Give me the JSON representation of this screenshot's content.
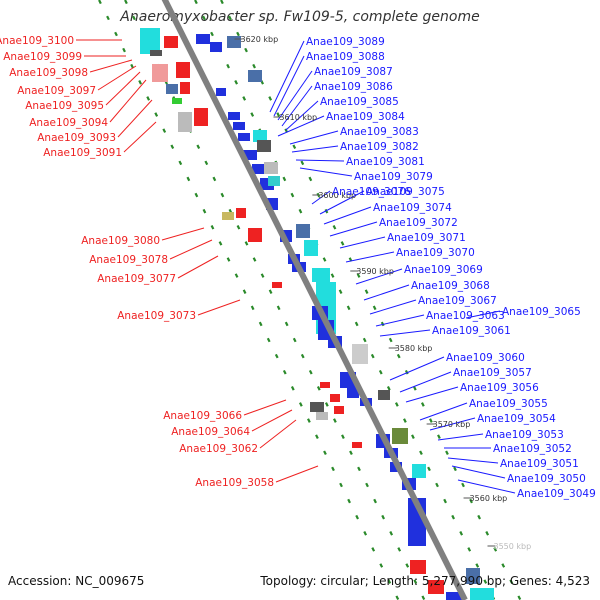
{
  "title": "Anaeromyxobacter sp. Fw109-5, complete genome",
  "footer": {
    "accession": "Accession: NC_009675",
    "summary": "Topology: circular; Length: 5,277,990 bp; Genes: 4,523"
  },
  "colors": {
    "forward_label": "#1a1aff",
    "reverse_label": "#ee2222",
    "backbone": "#808080",
    "orf_frame": "#2a8a2a"
  },
  "ruler": [
    "3620 kbp",
    "3610 kbp",
    "3600 kbp",
    "3590 kbp",
    "3580 kbp",
    "3570 kbp",
    "3560 kbp",
    "3550 kbp"
  ],
  "forward_genes": [
    "Anae109_3089",
    "Anae109_3088",
    "Anae109_3087",
    "Anae109_3086",
    "Anae109_3085",
    "Anae109_3084",
    "Anae109_3083",
    "Anae109_3082",
    "Anae109_3081",
    "Anae109_3079",
    "Anae109_3076",
    "Anae109_3075",
    "Anae109_3074",
    "Anae109_3072",
    "Anae109_3071",
    "Anae109_3070",
    "Anae109_3069",
    "Anae109_3068",
    "Anae109_3067",
    "Anae109_3063",
    "Anae109_3065",
    "Anae109_3061",
    "Anae109_3060",
    "Anae109_3057",
    "Anae109_3056",
    "Anae109_3055",
    "Anae109_3054",
    "Anae109_3053",
    "Anae109_3052",
    "Anae109_3051",
    "Anae109_3050",
    "Anae109_3049"
  ],
  "reverse_genes": [
    "Anae109_3100",
    "Anae109_3099",
    "Anae109_3098",
    "Anae109_3097",
    "Anae109_3095",
    "Anae109_3094",
    "Anae109_3093",
    "Anae109_3091",
    "Anae109_3080",
    "Anae109_3078",
    "Anae109_3077",
    "Anae109_3073",
    "Anae109_3066",
    "Anae109_3064",
    "Anae109_3062",
    "Anae109_3058"
  ]
}
